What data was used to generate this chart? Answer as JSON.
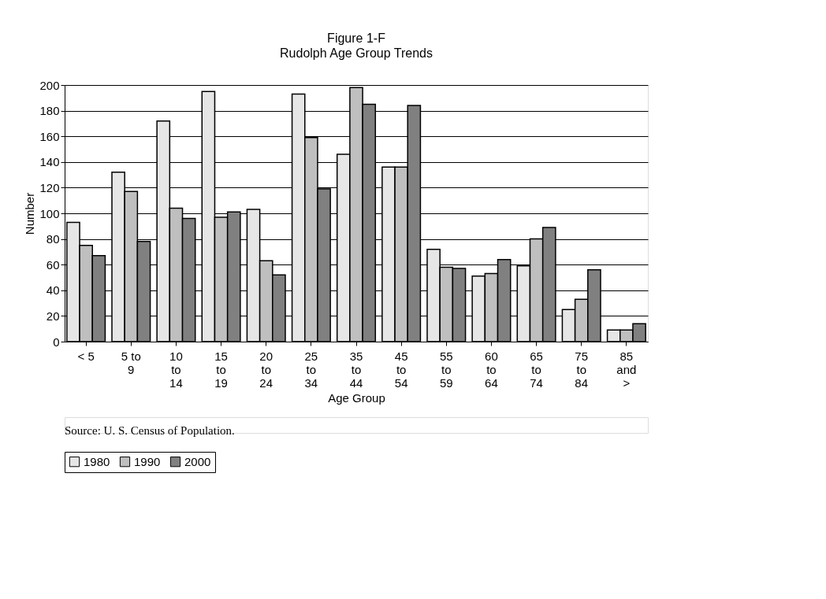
{
  "chart_data": {
    "type": "bar",
    "title": "Figure 1-F",
    "subtitle": "Rudolph Age Group Trends",
    "xlabel": "Age Group",
    "ylabel": "Number",
    "categories": [
      "< 5",
      "5 to 9",
      "10 to 14",
      "15 to 19",
      "20 to 24",
      "25 to 34",
      "35 to 44",
      "45 to 54",
      "55 to 59",
      "60 to 64",
      "65 to 74",
      "75 to 84",
      "85 and >"
    ],
    "series": [
      {
        "name": "1980",
        "color": "#e6e6e6",
        "values": [
          93,
          132,
          172,
          195,
          103,
          193,
          146,
          136,
          72,
          51,
          59,
          25,
          9
        ]
      },
      {
        "name": "1990",
        "color": "#bfbfbf",
        "values": [
          75,
          117,
          104,
          97,
          63,
          159,
          198,
          136,
          58,
          53,
          80,
          33,
          9
        ]
      },
      {
        "name": "2000",
        "color": "#808080",
        "values": [
          67,
          78,
          96,
          101,
          52,
          119,
          185,
          184,
          57,
          64,
          89,
          56,
          14
        ]
      }
    ],
    "ylim": [
      0,
      200
    ],
    "yticks": [
      0,
      20,
      40,
      60,
      80,
      100,
      120,
      140,
      160,
      180,
      200
    ],
    "grid": "y",
    "legend": "bottom",
    "annotations": [
      "Source: U. S. Census of Population."
    ]
  }
}
